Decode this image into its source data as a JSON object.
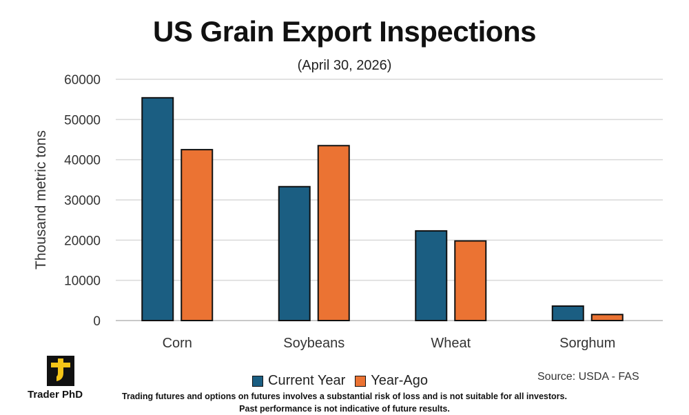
{
  "chart_data": {
    "type": "bar",
    "title": "US Grain Export Inspections",
    "subtitle": "(April 30, 2026)",
    "ylabel": "Thousand metric tons",
    "xlabel": "",
    "ylim": [
      0,
      60000
    ],
    "yticks": [
      0,
      10000,
      20000,
      30000,
      40000,
      50000,
      60000
    ],
    "grid": true,
    "legend": "bottom",
    "categories": [
      "Corn",
      "Soybeans",
      "Wheat",
      "Sorghum"
    ],
    "series": [
      {
        "name": "Current Year",
        "color": "#1b5e82",
        "values": [
          55400,
          33300,
          22300,
          3600
        ]
      },
      {
        "name": "Year-Ago",
        "color": "#eb7333",
        "values": [
          42500,
          43500,
          19800,
          1500
        ]
      }
    ]
  },
  "source": "Source: USDA - FAS",
  "brand": {
    "name": "Trader PhD",
    "logo_icon": "trader-phd-logo-icon",
    "logo_color": "#f5c518"
  },
  "disclaimer": {
    "line1": "Trading futures and options on futures involves a substantial risk of loss and is not suitable for all investors.",
    "line2": "Past performance is not indicative of future results."
  }
}
